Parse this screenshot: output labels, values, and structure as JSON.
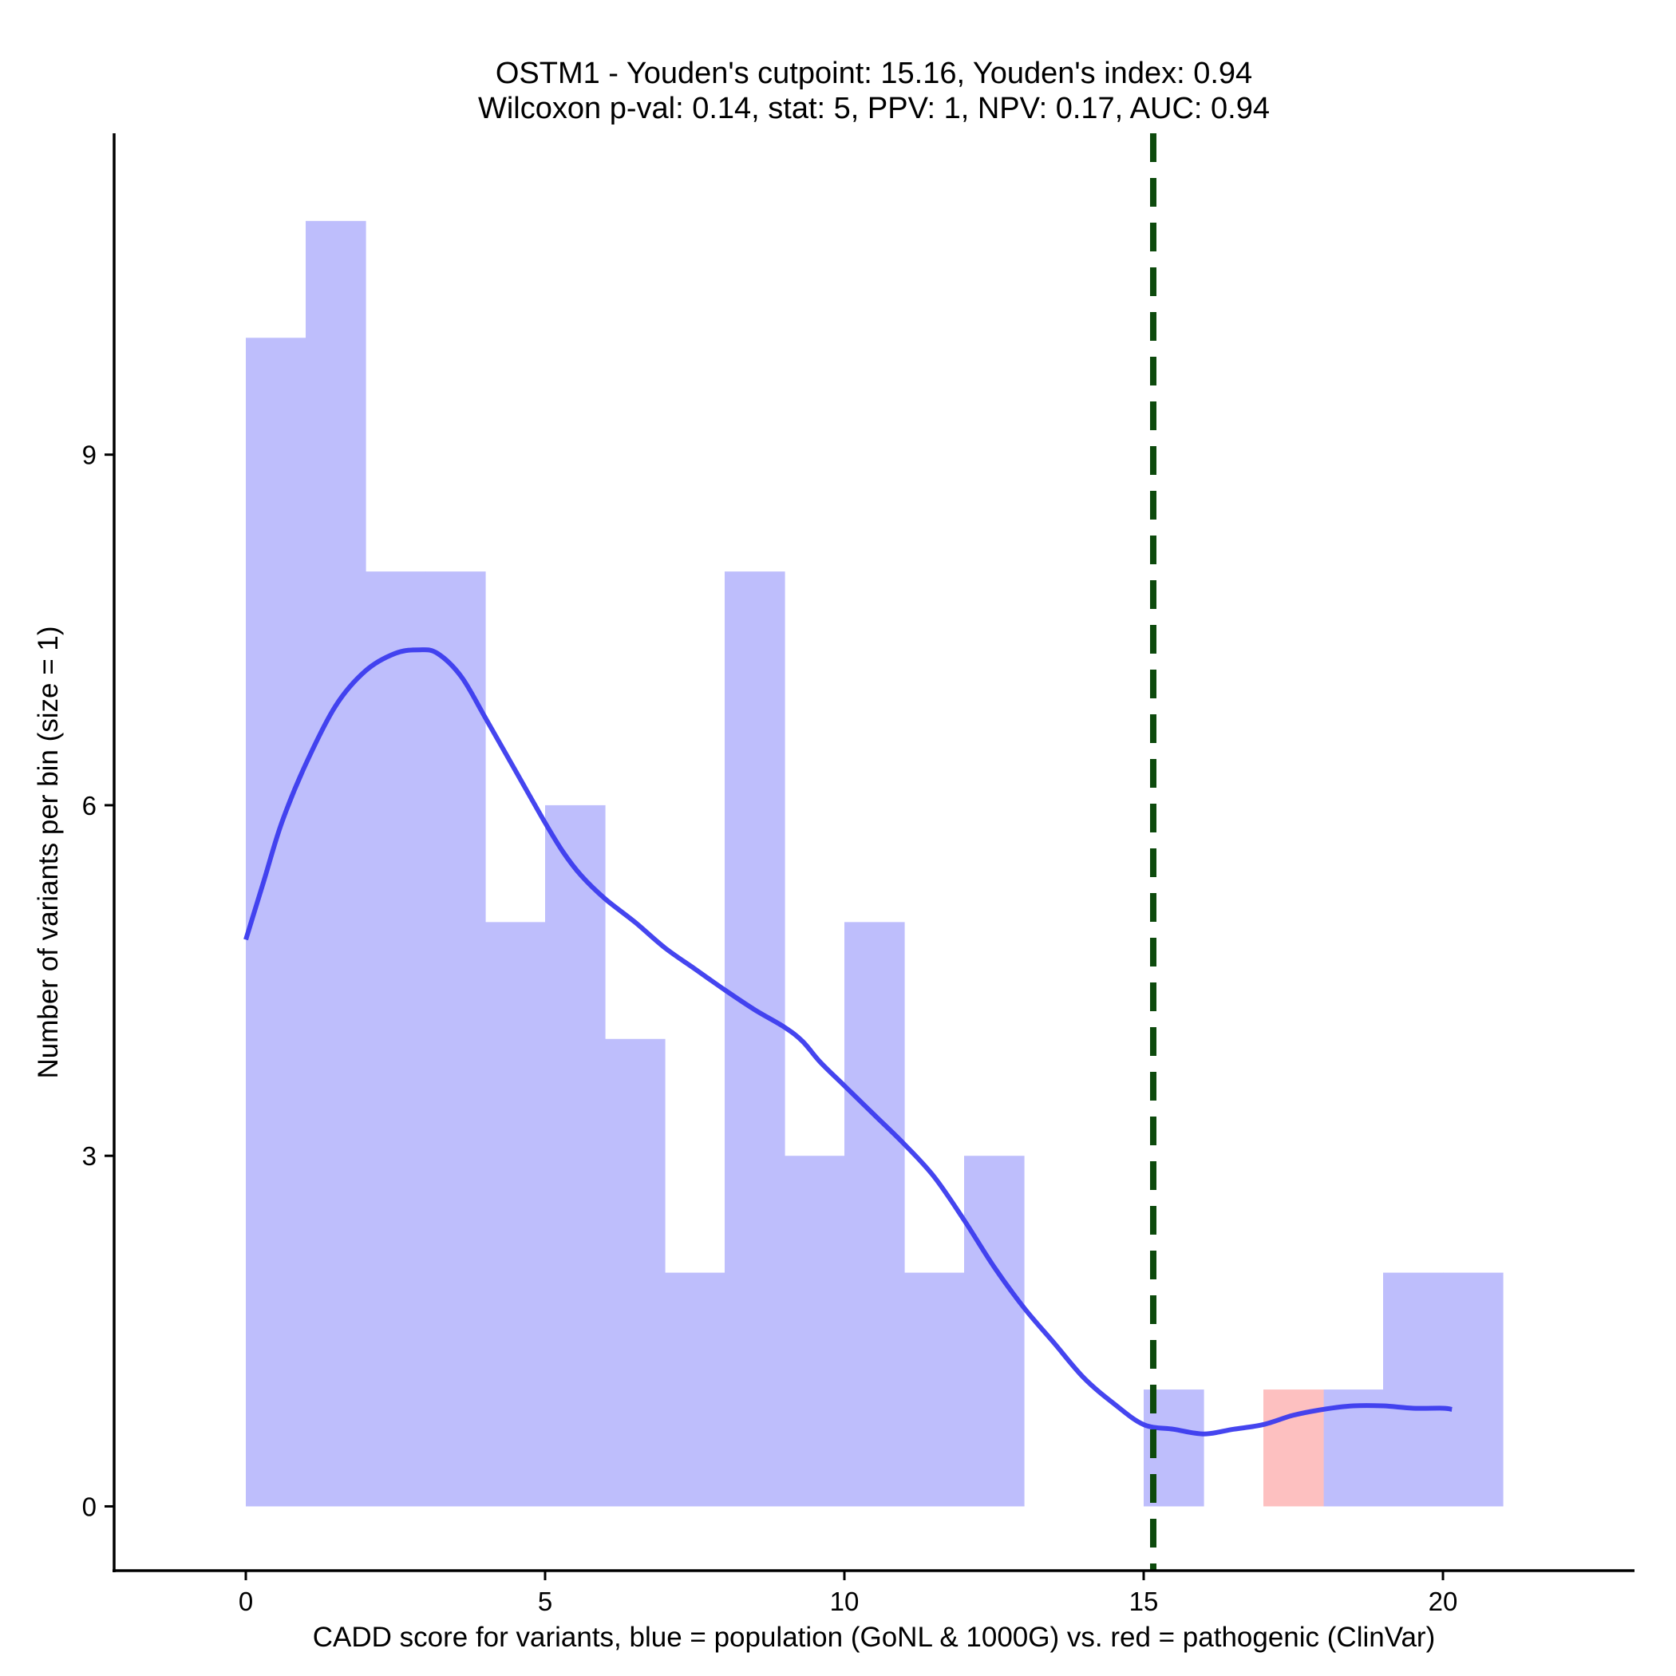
{
  "chart_data": {
    "type": "bar",
    "title_line1": "OSTM1 - Youden's cutpoint: 15.16, Youden's index: 0.94",
    "title_line2": "Wilcoxon p-val: 0.14, stat: 5, PPV: 1, NPV: 0.17, AUC: 0.94",
    "xlabel": "CADD score for variants, blue = population (GoNL & 1000G) vs. red = pathogenic (ClinVar)",
    "ylabel": "Number of variants per bin (size = 1)",
    "xlim": [
      -2.2,
      23.2
    ],
    "ylim": [
      -0.55,
      11.75
    ],
    "x_ticks": [
      0,
      5,
      10,
      15,
      20
    ],
    "x_tick_labels": [
      "0",
      "5",
      "10",
      "15",
      "20"
    ],
    "y_ticks": [
      0,
      3,
      6,
      9
    ],
    "y_tick_labels": [
      "0",
      "3",
      "6",
      "9"
    ],
    "bin_width": 1,
    "series": [
      {
        "name": "population (GoNL & 1000G)",
        "color": "#bebefc",
        "bins": [
          {
            "x0": 0,
            "count": 10
          },
          {
            "x0": 1,
            "count": 11
          },
          {
            "x0": 2,
            "count": 8
          },
          {
            "x0": 3,
            "count": 8
          },
          {
            "x0": 4,
            "count": 5
          },
          {
            "x0": 5,
            "count": 6
          },
          {
            "x0": 6,
            "count": 4
          },
          {
            "x0": 7,
            "count": 2
          },
          {
            "x0": 8,
            "count": 8
          },
          {
            "x0": 9,
            "count": 3
          },
          {
            "x0": 10,
            "count": 5
          },
          {
            "x0": 11,
            "count": 2
          },
          {
            "x0": 12,
            "count": 3
          },
          {
            "x0": 15,
            "count": 1
          },
          {
            "x0": 18,
            "count": 1
          },
          {
            "x0": 19,
            "count": 2
          },
          {
            "x0": 20,
            "count": 2
          }
        ]
      },
      {
        "name": "pathogenic (ClinVar)",
        "color": "#fdc0c0",
        "bins": [
          {
            "x0": 17,
            "count": 1
          }
        ]
      }
    ],
    "density_curve": {
      "name": "population density (smoothed)",
      "color": "#3b3bee",
      "points": [
        [
          0.0,
          4.85
        ],
        [
          0.3,
          5.35
        ],
        [
          0.6,
          5.85
        ],
        [
          1.0,
          6.35
        ],
        [
          1.5,
          6.85
        ],
        [
          2.0,
          7.15
        ],
        [
          2.5,
          7.3
        ],
        [
          2.9,
          7.33
        ],
        [
          3.2,
          7.3
        ],
        [
          3.6,
          7.1
        ],
        [
          4.0,
          6.75
        ],
        [
          4.5,
          6.3
        ],
        [
          5.0,
          5.85
        ],
        [
          5.3,
          5.6
        ],
        [
          5.6,
          5.4
        ],
        [
          6.0,
          5.2
        ],
        [
          6.5,
          5.0
        ],
        [
          7.0,
          4.78
        ],
        [
          7.5,
          4.6
        ],
        [
          8.0,
          4.42
        ],
        [
          8.5,
          4.25
        ],
        [
          9.0,
          4.1
        ],
        [
          9.3,
          3.98
        ],
        [
          9.6,
          3.8
        ],
        [
          10.0,
          3.6
        ],
        [
          10.5,
          3.35
        ],
        [
          11.0,
          3.1
        ],
        [
          11.5,
          2.82
        ],
        [
          12.0,
          2.45
        ],
        [
          12.5,
          2.05
        ],
        [
          13.0,
          1.7
        ],
        [
          13.5,
          1.4
        ],
        [
          14.0,
          1.1
        ],
        [
          14.5,
          0.88
        ],
        [
          15.0,
          0.7
        ],
        [
          15.5,
          0.66
        ],
        [
          16.0,
          0.62
        ],
        [
          16.5,
          0.66
        ],
        [
          17.0,
          0.7
        ],
        [
          17.5,
          0.78
        ],
        [
          18.0,
          0.83
        ],
        [
          18.5,
          0.86
        ],
        [
          19.0,
          0.86
        ],
        [
          19.5,
          0.84
        ],
        [
          20.0,
          0.84
        ],
        [
          20.15,
          0.83
        ]
      ]
    },
    "cutpoint": {
      "label": "Youden's cutpoint",
      "value": 15.16,
      "color": "#0d4a0d",
      "style": "dashed"
    },
    "grid": false,
    "legend": "none"
  }
}
